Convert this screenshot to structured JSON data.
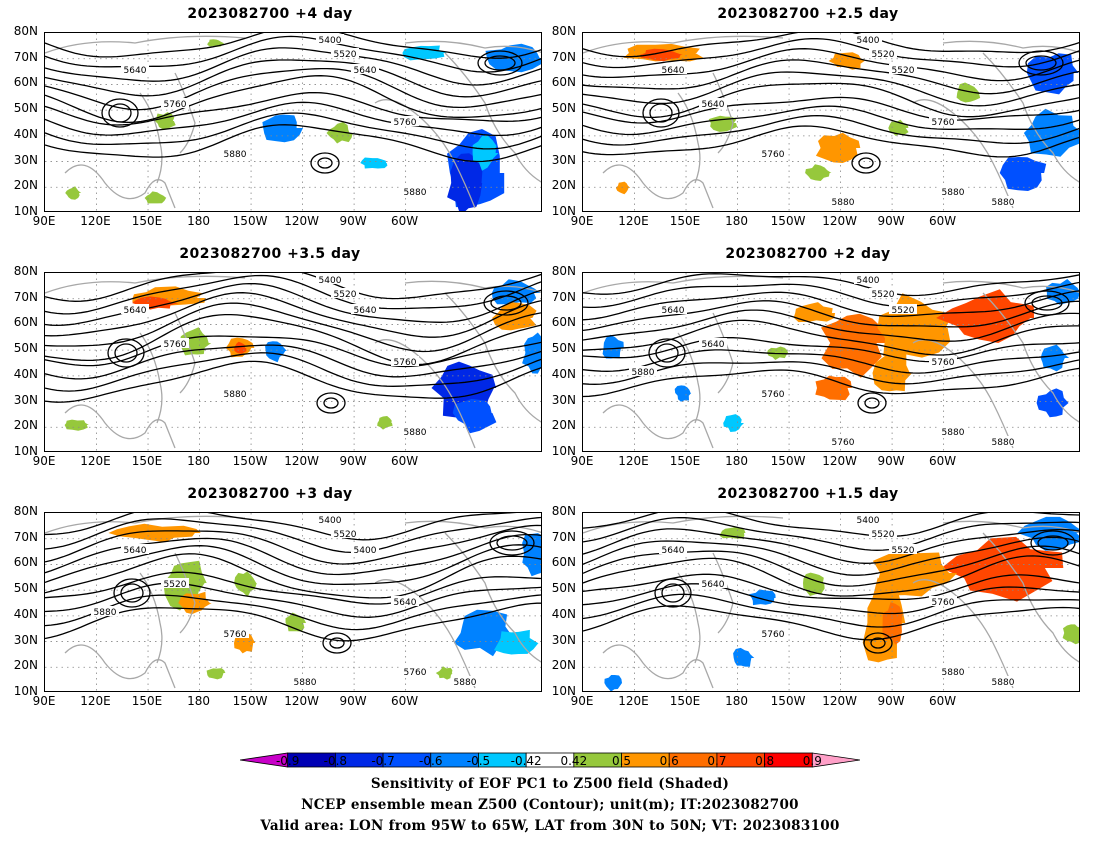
{
  "panels": [
    {
      "title": "2023082700  +4 day"
    },
    {
      "title": "2023082700  +2.5 day"
    },
    {
      "title": "2023082700  +3.5 day"
    },
    {
      "title": "2023082700  +2 day"
    },
    {
      "title": "2023082700  +3 day"
    },
    {
      "title": "2023082700  +1.5 day"
    }
  ],
  "y_ticks": [
    "80N",
    "70N",
    "60N",
    "50N",
    "40N",
    "30N",
    "20N",
    "10N"
  ],
  "x_ticks": [
    "90E",
    "120E",
    "150E",
    "180",
    "150W",
    "120W",
    "90W",
    "60W"
  ],
  "contour_labels": {
    "p0": [
      "5400",
      "5520",
      "5640",
      "5640",
      "5760",
      "5760",
      "5880",
      "5880"
    ],
    "p1": [
      "5400",
      "5520",
      "5640",
      "5520",
      "5640",
      "5760",
      "5760",
      "5880",
      "5880",
      "5880"
    ],
    "p2": [
      "5400",
      "5520",
      "5640",
      "5640",
      "5760",
      "5760",
      "5880",
      "5880"
    ],
    "p3": [
      "5400",
      "5520",
      "5640",
      "5520",
      "5640",
      "5760",
      "5760",
      "5880",
      "5880",
      "5760",
      "5880"
    ],
    "p4": [
      "5400",
      "5520",
      "5640",
      "5400",
      "5520",
      "5640",
      "5760",
      "5760",
      "5880",
      "5880",
      "5880"
    ],
    "p5": [
      "5400",
      "5520",
      "5640",
      "5520",
      "5640",
      "5760",
      "5760",
      "5880",
      "5880"
    ]
  },
  "colorbar": {
    "labels": [
      "-0.9",
      "-0.8",
      "-0.7",
      "-0.6",
      "-0.5",
      "-0.42",
      "0.42",
      "0.5",
      "0.6",
      "0.7",
      "0.8",
      "0.9"
    ],
    "colors": [
      "#c800c8",
      "#0000b4",
      "#0028e6",
      "#0050ff",
      "#0082ff",
      "#00c8ff",
      "#ffffff",
      "#96c83c",
      "#ff9600",
      "#ff6e00",
      "#ff4600",
      "#ff0000",
      "#ffa0c8"
    ]
  },
  "caption": {
    "line1": "Sensitivity of EOF PC1 to Z500 field (Shaded)",
    "line2": "NCEP ensemble mean Z500 (Contour); unit(m); IT:2023082700",
    "line3": "Valid area: LON from 95W to 65W, LAT from 30N to 50N; VT: 2023083100"
  }
}
